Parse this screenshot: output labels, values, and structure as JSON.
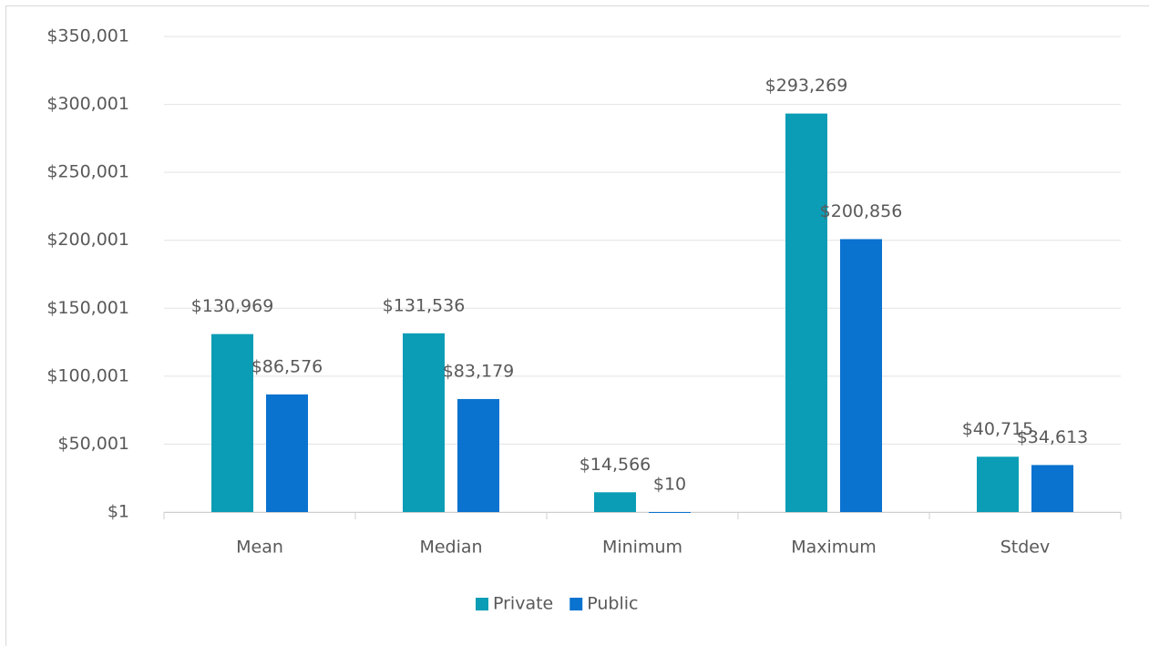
{
  "chart_data": {
    "type": "bar",
    "categories": [
      "Mean",
      "Median",
      "Minimum",
      "Maximum",
      "Stdev"
    ],
    "series": [
      {
        "name": "Private",
        "color": "#0b9db5",
        "values": [
          130969,
          131536,
          14566,
          293269,
          40715
        ],
        "value_labels": [
          "$130,969",
          "$131,536",
          "$14,566",
          "$293,269",
          "$40,715"
        ]
      },
      {
        "name": "Public",
        "color": "#0a72cf",
        "values": [
          86576,
          83179,
          10,
          200856,
          34613
        ],
        "value_labels": [
          "$86,576",
          "$83,179",
          "$10",
          "$200,856",
          "$34,613"
        ]
      }
    ],
    "ylim": [
      1,
      350001
    ],
    "yticks": [
      {
        "value": 1,
        "label": "$1"
      },
      {
        "value": 50001,
        "label": "$50,001"
      },
      {
        "value": 100001,
        "label": "$100,001"
      },
      {
        "value": 150001,
        "label": "$150,001"
      },
      {
        "value": 200001,
        "label": "$200,001"
      },
      {
        "value": 250001,
        "label": "$250,001"
      },
      {
        "value": 300001,
        "label": "$300,001"
      },
      {
        "value": 350001,
        "label": "$350,001"
      }
    ],
    "grid": true,
    "legend": "bottom"
  }
}
